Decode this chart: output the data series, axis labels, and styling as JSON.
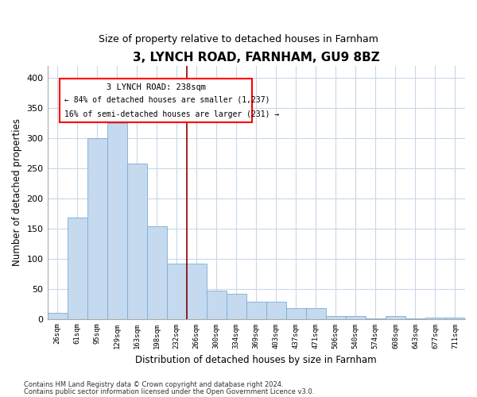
{
  "title": "3, LYNCH ROAD, FARNHAM, GU9 8BZ",
  "subtitle": "Size of property relative to detached houses in Farnham",
  "xlabel": "Distribution of detached houses by size in Farnham",
  "ylabel": "Number of detached properties",
  "bar_color": "#c5d9ef",
  "bar_edge_color": "#7aaed4",
  "grid_color": "#c8d8ea",
  "background_color": "#ffffff",
  "categories": [
    "26sqm",
    "61sqm",
    "95sqm",
    "129sqm",
    "163sqm",
    "198sqm",
    "232sqm",
    "266sqm",
    "300sqm",
    "334sqm",
    "369sqm",
    "403sqm",
    "437sqm",
    "471sqm",
    "506sqm",
    "540sqm",
    "574sqm",
    "608sqm",
    "643sqm",
    "677sqm",
    "711sqm"
  ],
  "values": [
    10,
    168,
    300,
    325,
    258,
    153,
    92,
    92,
    47,
    42,
    28,
    28,
    18,
    18,
    5,
    5,
    1,
    5,
    1,
    2,
    2
  ],
  "ylim": [
    0,
    420
  ],
  "yticks": [
    0,
    50,
    100,
    150,
    200,
    250,
    300,
    350,
    400
  ],
  "property_line_x": 6.5,
  "property_label": "3 LYNCH ROAD: 238sqm",
  "annotation_line1": "← 84% of detached houses are smaller (1,237)",
  "annotation_line2": "16% of semi-detached houses are larger (231) →",
  "footnote1": "Contains HM Land Registry data © Crown copyright and database right 2024.",
  "footnote2": "Contains public sector information licensed under the Open Government Licence v3.0."
}
